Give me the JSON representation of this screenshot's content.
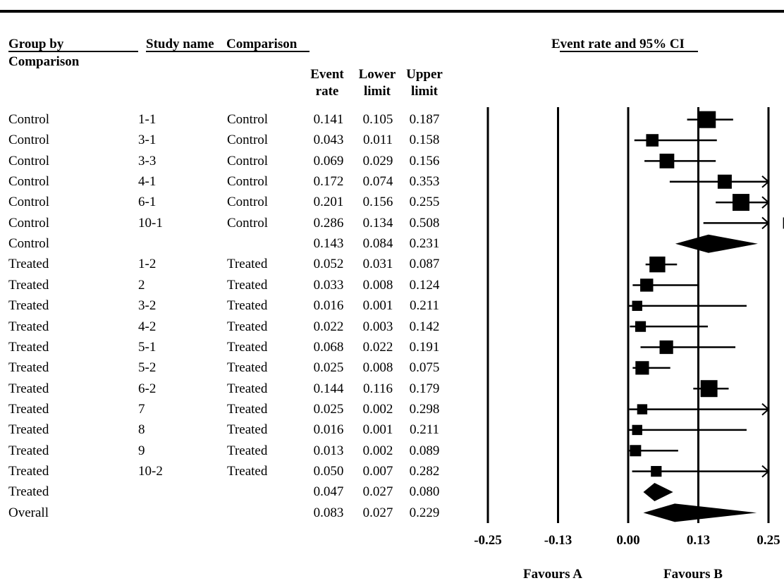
{
  "headers": {
    "group_by": "Group by",
    "comparison_label": "Comparison",
    "study_name": "Study name",
    "comparison": "Comparison",
    "plot_title": "Event rate and 95% CI",
    "event_rate_l1": "Event",
    "event_rate_l2": "rate",
    "lower_limit_l1": "Lower",
    "lower_limit_l2": "limit",
    "upper_limit_l1": "Upper",
    "upper_limit_l2": "limit"
  },
  "favours": {
    "a": "Favours A",
    "b": "Favours B"
  },
  "chart_data": {
    "type": "forest",
    "title": "Event rate and 95% CI",
    "xlim": [
      -0.25,
      0.25
    ],
    "ticks": [
      -0.25,
      -0.125,
      0.0,
      0.125,
      0.25
    ],
    "tick_labels": [
      "-0.25",
      "-0.13",
      "0.00",
      "0.13",
      "0.25"
    ],
    "rows": [
      {
        "group": "Control",
        "study": "1-1",
        "comparison": "Control",
        "event_rate": "0.141",
        "lower": "0.105",
        "upper": "0.187",
        "weight": 1.0,
        "kind": "study"
      },
      {
        "group": "Control",
        "study": "3-1",
        "comparison": "Control",
        "event_rate": "0.043",
        "lower": "0.011",
        "upper": "0.158",
        "weight": 0.6,
        "kind": "study"
      },
      {
        "group": "Control",
        "study": "3-3",
        "comparison": "Control",
        "event_rate": "0.069",
        "lower": "0.029",
        "upper": "0.156",
        "weight": 0.8,
        "kind": "study"
      },
      {
        "group": "Control",
        "study": "4-1",
        "comparison": "Control",
        "event_rate": "0.172",
        "lower": "0.074",
        "upper": "0.353",
        "weight": 0.75,
        "kind": "study"
      },
      {
        "group": "Control",
        "study": "6-1",
        "comparison": "Control",
        "event_rate": "0.201",
        "lower": "0.156",
        "upper": "0.255",
        "weight": 1.0,
        "kind": "study"
      },
      {
        "group": "Control",
        "study": "10-1",
        "comparison": "Control",
        "event_rate": "0.286",
        "lower": "0.134",
        "upper": "0.508",
        "weight": 0.5,
        "kind": "study"
      },
      {
        "group": "Control",
        "study": "",
        "comparison": "",
        "event_rate": "0.143",
        "lower": "0.084",
        "upper": "0.231",
        "kind": "summary"
      },
      {
        "group": "Treated",
        "study": "1-2",
        "comparison": "Treated",
        "event_rate": "0.052",
        "lower": "0.031",
        "upper": "0.087",
        "weight": 0.9,
        "kind": "study"
      },
      {
        "group": "Treated",
        "study": "2",
        "comparison": "Treated",
        "event_rate": "0.033",
        "lower": "0.008",
        "upper": "0.124",
        "weight": 0.65,
        "kind": "study"
      },
      {
        "group": "Treated",
        "study": "3-2",
        "comparison": "Treated",
        "event_rate": "0.016",
        "lower": "0.001",
        "upper": "0.211",
        "weight": 0.4,
        "kind": "study"
      },
      {
        "group": "Treated",
        "study": "4-2",
        "comparison": "Treated",
        "event_rate": "0.022",
        "lower": "0.003",
        "upper": "0.142",
        "weight": 0.45,
        "kind": "study"
      },
      {
        "group": "Treated",
        "study": "5-1",
        "comparison": "Treated",
        "event_rate": "0.068",
        "lower": "0.022",
        "upper": "0.191",
        "weight": 0.7,
        "kind": "study"
      },
      {
        "group": "Treated",
        "study": "5-2",
        "comparison": "Treated",
        "event_rate": "0.025",
        "lower": "0.008",
        "upper": "0.075",
        "weight": 0.7,
        "kind": "study"
      },
      {
        "group": "Treated",
        "study": "6-2",
        "comparison": "Treated",
        "event_rate": "0.144",
        "lower": "0.116",
        "upper": "0.179",
        "weight": 1.0,
        "kind": "study"
      },
      {
        "group": "Treated",
        "study": "7",
        "comparison": "Treated",
        "event_rate": "0.025",
        "lower": "0.002",
        "upper": "0.298",
        "weight": 0.4,
        "kind": "study"
      },
      {
        "group": "Treated",
        "study": "8",
        "comparison": "Treated",
        "event_rate": "0.016",
        "lower": "0.001",
        "upper": "0.211",
        "weight": 0.4,
        "kind": "study"
      },
      {
        "group": "Treated",
        "study": "9",
        "comparison": "Treated",
        "event_rate": "0.013",
        "lower": "0.002",
        "upper": "0.089",
        "weight": 0.5,
        "kind": "study"
      },
      {
        "group": "Treated",
        "study": "10-2",
        "comparison": "Treated",
        "event_rate": "0.050",
        "lower": "0.007",
        "upper": "0.282",
        "weight": 0.45,
        "kind": "study"
      },
      {
        "group": "Treated",
        "study": "",
        "comparison": "",
        "event_rate": "0.047",
        "lower": "0.027",
        "upper": "0.080",
        "kind": "summary"
      },
      {
        "group": "Overall",
        "study": "",
        "comparison": "",
        "event_rate": "0.083",
        "lower": "0.027",
        "upper": "0.229",
        "kind": "summary"
      }
    ]
  }
}
